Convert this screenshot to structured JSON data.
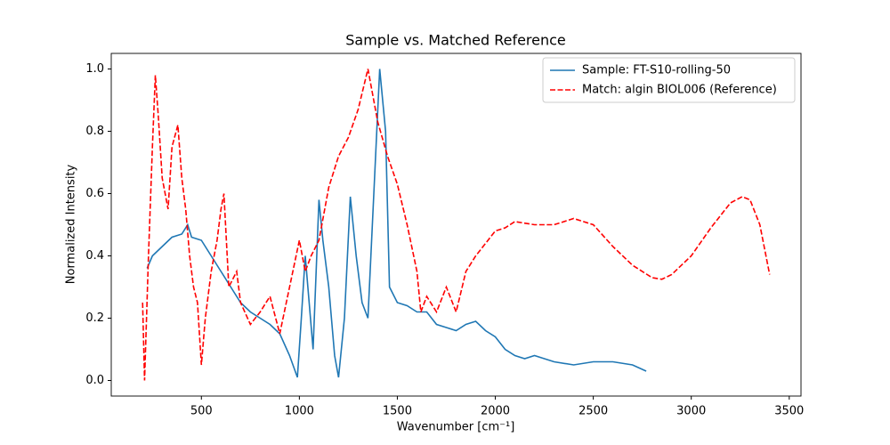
{
  "chart_data": {
    "type": "line",
    "title": "Sample vs. Matched Reference",
    "x_label": "Wavenumber [cm⁻¹]",
    "y_label": "Normalized Intensity",
    "xlim": [
      40,
      3560
    ],
    "ylim": [
      -0.05,
      1.05
    ],
    "xticks": [
      500,
      1000,
      1500,
      2000,
      2500,
      3000,
      3500
    ],
    "yticks": [
      {
        "value": 0,
        "label": "0.0"
      },
      0.2,
      0.4,
      0.6,
      0.8,
      {
        "value": 1,
        "label": "1.0"
      }
    ],
    "legend": "upper right",
    "series": [
      {
        "name": "Sample: FT-S10-rolling-50",
        "color": "#1f77b4",
        "dash": "solid",
        "x": [
          223,
          250,
          300,
          350,
          400,
          430,
          450,
          500,
          550,
          600,
          650,
          700,
          750,
          800,
          850,
          900,
          950,
          990,
          1010,
          1030,
          1050,
          1070,
          1100,
          1120,
          1150,
          1180,
          1200,
          1230,
          1260,
          1290,
          1320,
          1350,
          1380,
          1410,
          1440,
          1460,
          1500,
          1550,
          1600,
          1650,
          1700,
          1750,
          1800,
          1850,
          1900,
          1950,
          2000,
          2050,
          2100,
          2150,
          2200,
          2250,
          2300,
          2400,
          2500,
          2600,
          2700,
          2770
        ],
        "values": [
          0.36,
          0.4,
          0.43,
          0.46,
          0.47,
          0.5,
          0.46,
          0.45,
          0.4,
          0.35,
          0.3,
          0.25,
          0.22,
          0.2,
          0.18,
          0.15,
          0.08,
          0.01,
          0.2,
          0.4,
          0.25,
          0.1,
          0.58,
          0.45,
          0.3,
          0.08,
          0.01,
          0.2,
          0.59,
          0.4,
          0.25,
          0.2,
          0.6,
          1.0,
          0.8,
          0.3,
          0.25,
          0.24,
          0.22,
          0.22,
          0.18,
          0.17,
          0.16,
          0.18,
          0.19,
          0.16,
          0.14,
          0.1,
          0.08,
          0.07,
          0.08,
          0.07,
          0.06,
          0.05,
          0.06,
          0.06,
          0.05,
          0.03
        ]
      },
      {
        "name": "Match: algin BIOL006 (Reference)",
        "color": "#ff0000",
        "dash": "dashed",
        "x": [
          200,
          210,
          230,
          250,
          265,
          280,
          300,
          330,
          350,
          380,
          400,
          420,
          440,
          460,
          480,
          500,
          520,
          550,
          580,
          600,
          615,
          640,
          680,
          700,
          750,
          800,
          850,
          900,
          950,
          1000,
          1030,
          1060,
          1100,
          1150,
          1200,
          1250,
          1300,
          1350,
          1400,
          1450,
          1500,
          1550,
          1600,
          1620,
          1650,
          1700,
          1750,
          1800,
          1850,
          1900,
          1950,
          2000,
          2050,
          2100,
          2200,
          2300,
          2400,
          2500,
          2600,
          2700,
          2800,
          2850,
          2900,
          3000,
          3100,
          3200,
          3260,
          3300,
          3350,
          3400
        ],
        "values": [
          0.25,
          0.0,
          0.4,
          0.75,
          0.98,
          0.85,
          0.65,
          0.55,
          0.75,
          0.82,
          0.65,
          0.55,
          0.4,
          0.3,
          0.25,
          0.05,
          0.2,
          0.35,
          0.45,
          0.55,
          0.6,
          0.3,
          0.35,
          0.25,
          0.18,
          0.22,
          0.27,
          0.15,
          0.3,
          0.45,
          0.35,
          0.4,
          0.45,
          0.62,
          0.72,
          0.78,
          0.87,
          1.0,
          0.83,
          0.72,
          0.63,
          0.5,
          0.35,
          0.22,
          0.27,
          0.22,
          0.3,
          0.22,
          0.35,
          0.4,
          0.44,
          0.48,
          0.49,
          0.51,
          0.5,
          0.5,
          0.52,
          0.5,
          0.43,
          0.37,
          0.33,
          0.325,
          0.34,
          0.4,
          0.49,
          0.57,
          0.59,
          0.58,
          0.5,
          0.34
        ]
      }
    ]
  }
}
